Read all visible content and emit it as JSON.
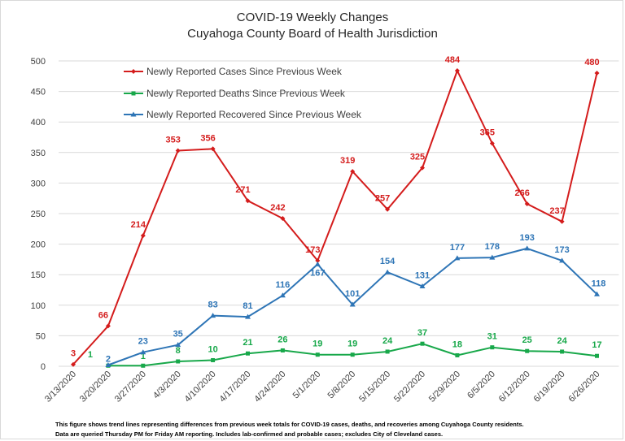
{
  "chart_data": {
    "type": "line",
    "title": "COVID-19 Weekly Changes",
    "subtitle": "Cuyahoga County Board of Health Jurisdiction",
    "categories": [
      "3/13/2020",
      "3/20/2020",
      "3/27/2020",
      "4/3/2020",
      "4/10/2020",
      "4/17/2020",
      "4/24/2020",
      "5/1/2020",
      "5/8/2020",
      "5/15/2020",
      "5/22/2020",
      "5/29/2020",
      "6/5/2020",
      "6/12/2020",
      "6/19/2020",
      "6/26/2020"
    ],
    "ylim": [
      0,
      500
    ],
    "yticks": [
      0,
      50,
      100,
      150,
      200,
      250,
      300,
      350,
      400,
      450,
      500
    ],
    "grid": true,
    "legend_position": "top-left",
    "series": [
      {
        "name": "Newly Reported Cases Since Previous Week",
        "color": "#d41c1c",
        "marker": "diamond",
        "values": [
          3,
          66,
          214,
          353,
          356,
          271,
          242,
          173,
          319,
          257,
          325,
          484,
          365,
          266,
          237,
          480
        ]
      },
      {
        "name": "Newly Reported Deaths Since Previous Week",
        "color": "#18a84a",
        "marker": "square",
        "values": [
          null,
          1,
          1,
          8,
          10,
          21,
          26,
          19,
          19,
          24,
          37,
          18,
          31,
          25,
          24,
          17
        ]
      },
      {
        "name": "Newly Reported Recovered Since Previous Week",
        "color": "#2e75b6",
        "marker": "triangle",
        "values": [
          null,
          2,
          23,
          35,
          83,
          81,
          116,
          167,
          101,
          154,
          131,
          177,
          178,
          193,
          173,
          118
        ]
      }
    ]
  },
  "footnote": {
    "line1": "This figure shows trend lines representing differences from previous week totals for COVID-19 cases, deaths, and recoveries among Cuyahoga County residents.",
    "line2": "Data are queried Thursday PM for Friday AM reporting.  Includes lab-confirmed and probable cases; excludes City of Cleveland cases."
  }
}
